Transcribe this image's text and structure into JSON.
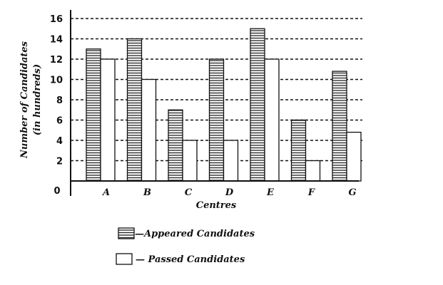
{
  "chart_data": {
    "type": "bar",
    "categories": [
      "A",
      "B",
      "C",
      "D",
      "E",
      "F",
      "G"
    ],
    "series": [
      {
        "name": "Appeared Candidates",
        "values": [
          13,
          14,
          7,
          12,
          15,
          6,
          10.8
        ]
      },
      {
        "name": "Passed Candidates",
        "values": [
          12,
          10,
          4,
          4,
          12,
          2,
          4.8
        ]
      }
    ],
    "xlabel": "Centres",
    "ylabel": [
      "Number of Candidates",
      "(in hundreds)"
    ],
    "ylim": [
      0,
      16
    ],
    "yticks": [
      2,
      4,
      6,
      8,
      10,
      12,
      14,
      16
    ],
    "origin_label": "0",
    "grid": "dashed horizontal",
    "legend_position": "bottom",
    "legend": [
      {
        "pattern": "horizontal-stripes",
        "text": "—Appeared Candidates"
      },
      {
        "pattern": "empty",
        "text": "— Passed Candidates"
      }
    ],
    "colors": {
      "ink": "#111111",
      "bar_fill": "#ffffff"
    }
  }
}
